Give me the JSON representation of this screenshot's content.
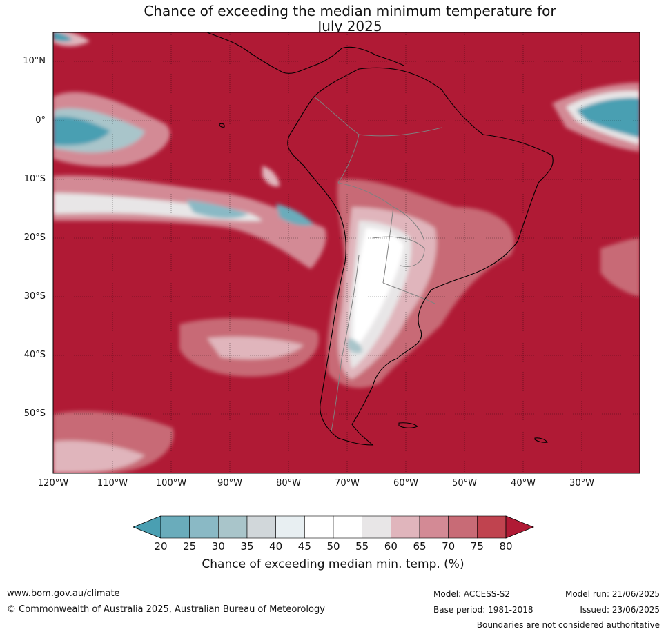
{
  "title": {
    "line1": "Chance of exceeding the median minimum temperature for",
    "line2": "July 2025"
  },
  "map": {
    "lat_labels": [
      "10°N",
      "0°",
      "10°S",
      "20°S",
      "30°S",
      "40°S",
      "50°S"
    ],
    "lon_labels": [
      "120°W",
      "110°W",
      "100°W",
      "90°W",
      "80°W",
      "70°W",
      "60°W",
      "50°W",
      "40°W",
      "30°W"
    ],
    "background_color": "#b01a35"
  },
  "colorbar": {
    "ticks": [
      "20",
      "25",
      "30",
      "35",
      "40",
      "45",
      "50",
      "55",
      "60",
      "65",
      "70",
      "75",
      "80"
    ],
    "colors": [
      "#4a9fb2",
      "#6aacbb",
      "#8ab9c5",
      "#a9c5ca",
      "#d1d7da",
      "#e8eff2",
      "#ffffff",
      "#ffffff",
      "#e8e6e7",
      "#e0b5bc",
      "#d38a95",
      "#c86b76",
      "#c0434f",
      "#b01a35"
    ],
    "title": "Chance of exceeding median min. temp. (%)"
  },
  "footer": {
    "website": "www.bom.gov.au/climate",
    "copyright": "© Commonwealth of Australia 2025, Australian Bureau of Meteorology",
    "model": "Model: ACCESS-S2",
    "base_period": "Base period: 1981-2018",
    "model_run": "Model run: 21/06/2025",
    "issued": "Issued: 23/06/2025",
    "disclaimer": "Boundaries are not considered authoritative"
  }
}
